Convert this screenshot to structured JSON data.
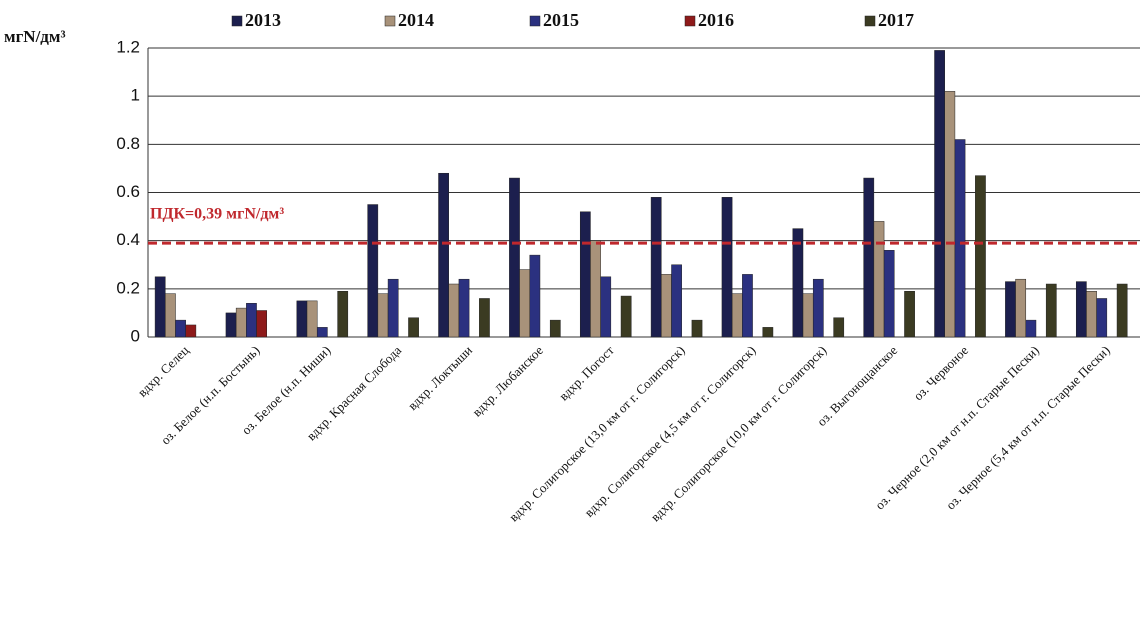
{
  "chart_data": {
    "type": "bar",
    "y_label": "мгN/дм³",
    "categories": [
      "вдхр. Селец",
      "оз. Белое (н.п. Бостынь)",
      "оз. Белое (н.п. Ниши)",
      "вдхр. Красная Слобода",
      "вдхр. Локтыши",
      "вдхр. Любанское",
      "вдхр. Погост",
      "вдхр. Солигорское (13,0 км от г. Солигорск)",
      "вдхр. Солигорское (4,5 км от г. Солигорск)",
      "вдхр. Солигорское (10,0 км от г. Солигорск)",
      "оз. Выгонощанское",
      "оз. Червоное",
      "оз. Черное (2,0 км от н.п. Старые Пески)",
      "оз. Черное (5,4 км от н.п. Старые Пески)"
    ],
    "series": [
      {
        "name": "2013",
        "color": "#1c1f4e",
        "values": [
          0.25,
          0.1,
          0.15,
          0.55,
          0.68,
          0.66,
          0.52,
          0.58,
          0.58,
          0.45,
          0.66,
          1.19,
          0.23,
          0.23
        ]
      },
      {
        "name": "2014",
        "color": "#a8927a",
        "values": [
          0.18,
          0.12,
          0.15,
          0.18,
          0.22,
          0.28,
          0.4,
          0.26,
          0.18,
          0.18,
          0.48,
          1.02,
          0.24,
          0.19
        ]
      },
      {
        "name": "2015",
        "color": "#2b3180",
        "values": [
          0.07,
          0.14,
          0.04,
          0.24,
          0.24,
          0.34,
          0.25,
          0.3,
          0.26,
          0.24,
          0.36,
          0.82,
          0.07,
          0.16
        ]
      },
      {
        "name": "2016",
        "color": "#8e1a1a",
        "values": [
          0.05,
          0.11,
          null,
          null,
          null,
          null,
          null,
          null,
          null,
          null,
          null,
          null,
          null,
          null
        ]
      },
      {
        "name": "2017",
        "color": "#3b3b22",
        "values": [
          null,
          null,
          0.19,
          0.08,
          0.16,
          0.07,
          0.17,
          0.07,
          0.04,
          0.08,
          0.19,
          0.67,
          0.22,
          0.22
        ]
      }
    ],
    "threshold": {
      "value": 0.39,
      "label": "ПДК=0,39 мгN/дм³",
      "color": "#c0282d"
    },
    "ylim": [
      0,
      1.2
    ],
    "yticks": [
      0,
      0.2,
      0.4,
      0.6,
      0.8,
      1,
      1.2
    ],
    "grid": true,
    "legend": "top"
  }
}
